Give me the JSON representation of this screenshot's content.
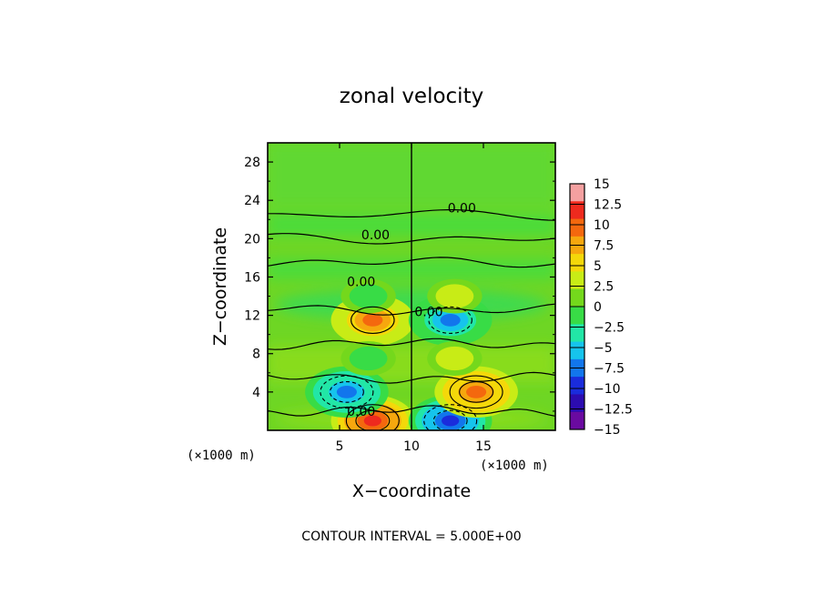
{
  "chart_data": {
    "type": "heatmap",
    "title": "zonal velocity",
    "xlabel": "X−coordinate",
    "ylabel": "Z−coordinate",
    "x_unit_left": "(×1000 m)",
    "x_unit_right": "(×1000 m)",
    "xlim": [
      0,
      20
    ],
    "ylim": [
      0,
      30
    ],
    "xticks": [
      "5",
      "10",
      "15"
    ],
    "yticks": [
      "4",
      "8",
      "12",
      "16",
      "20",
      "24",
      "28"
    ],
    "contour_label": "0.00",
    "contour_interval_text": "CONTOUR INTERVAL = 5.000E+00",
    "colorbar": {
      "ticks": [
        "15",
        "12.5",
        "10",
        "7.5",
        "5",
        "2.5",
        "0",
        "−2.5",
        "−5",
        "−7.5",
        "−10",
        "−12.5",
        "−15"
      ],
      "colors": [
        "#f4a0a0",
        "#ee2a1e",
        "#f4680e",
        "#f6a70e",
        "#f4d80a",
        "#c8ec16",
        "#74d81c",
        "#38dc46",
        "#22e6a6",
        "#16c4ec",
        "#1276ec",
        "#1a2cdc",
        "#2c0cb0",
        "#6a0aa0"
      ]
    },
    "features": [
      {
        "x": 7.3,
        "z": 1.0,
        "value": 13,
        "sign": "positive"
      },
      {
        "x": 12.7,
        "z": 1.0,
        "value": -13,
        "sign": "negative"
      },
      {
        "x": 5.5,
        "z": 4.0,
        "value": -10,
        "sign": "negative"
      },
      {
        "x": 14.5,
        "z": 4.0,
        "value": 10,
        "sign": "positive"
      },
      {
        "x": 7.3,
        "z": 11.5,
        "value": 9,
        "sign": "positive"
      },
      {
        "x": 12.7,
        "z": 11.5,
        "value": -9,
        "sign": "negative"
      },
      {
        "x": 7.0,
        "z": 7.5,
        "value": -3,
        "sign": "negative"
      },
      {
        "x": 13.0,
        "z": 7.5,
        "value": 3,
        "sign": "positive"
      },
      {
        "x": 7.0,
        "z": 14.0,
        "value": -2.5,
        "sign": "negative"
      },
      {
        "x": 13.0,
        "z": 14.0,
        "value": 2.5,
        "sign": "positive"
      }
    ]
  }
}
